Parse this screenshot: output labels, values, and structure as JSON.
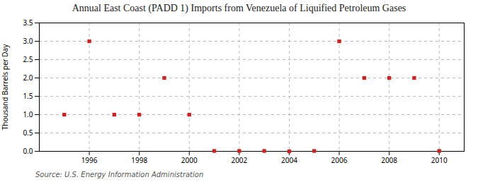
{
  "chart_data": {
    "type": "scatter",
    "title": "Annual East Coast (PADD 1) Imports from Venezuela of Liquified Petroleum Gases",
    "ylabel": "Thousand Barrels per Day",
    "annotations": [
      "Source: U.S. Energy Information Administration"
    ],
    "x": [
      1995,
      1996,
      1997,
      1998,
      1999,
      2000,
      2001,
      2002,
      2003,
      2004,
      2005,
      2006,
      2007,
      2008,
      2009,
      2010
    ],
    "values": [
      1.0,
      3.0,
      1.0,
      1.0,
      2.0,
      1.0,
      0.01,
      0.01,
      0.01,
      0.0,
      0.01,
      3.0,
      2.0,
      2.0,
      2.0,
      0.01
    ],
    "color": "#cc2222",
    "marker": "square",
    "xlim": [
      1994.0,
      2011.0
    ],
    "xticks": [
      1996,
      1998,
      2000,
      2002,
      2004,
      2006,
      2008,
      2010
    ],
    "ylim": [
      0.0,
      3.5
    ],
    "yticks": [
      {
        "value": 0.0,
        "label": "0.0"
      },
      0.5,
      {
        "value": 1.0,
        "label": "1.0"
      },
      1.5,
      {
        "value": 2.0,
        "label": "2.0"
      },
      2.5,
      {
        "value": 3.0,
        "label": "3.0"
      },
      3.5
    ],
    "grid": true
  }
}
